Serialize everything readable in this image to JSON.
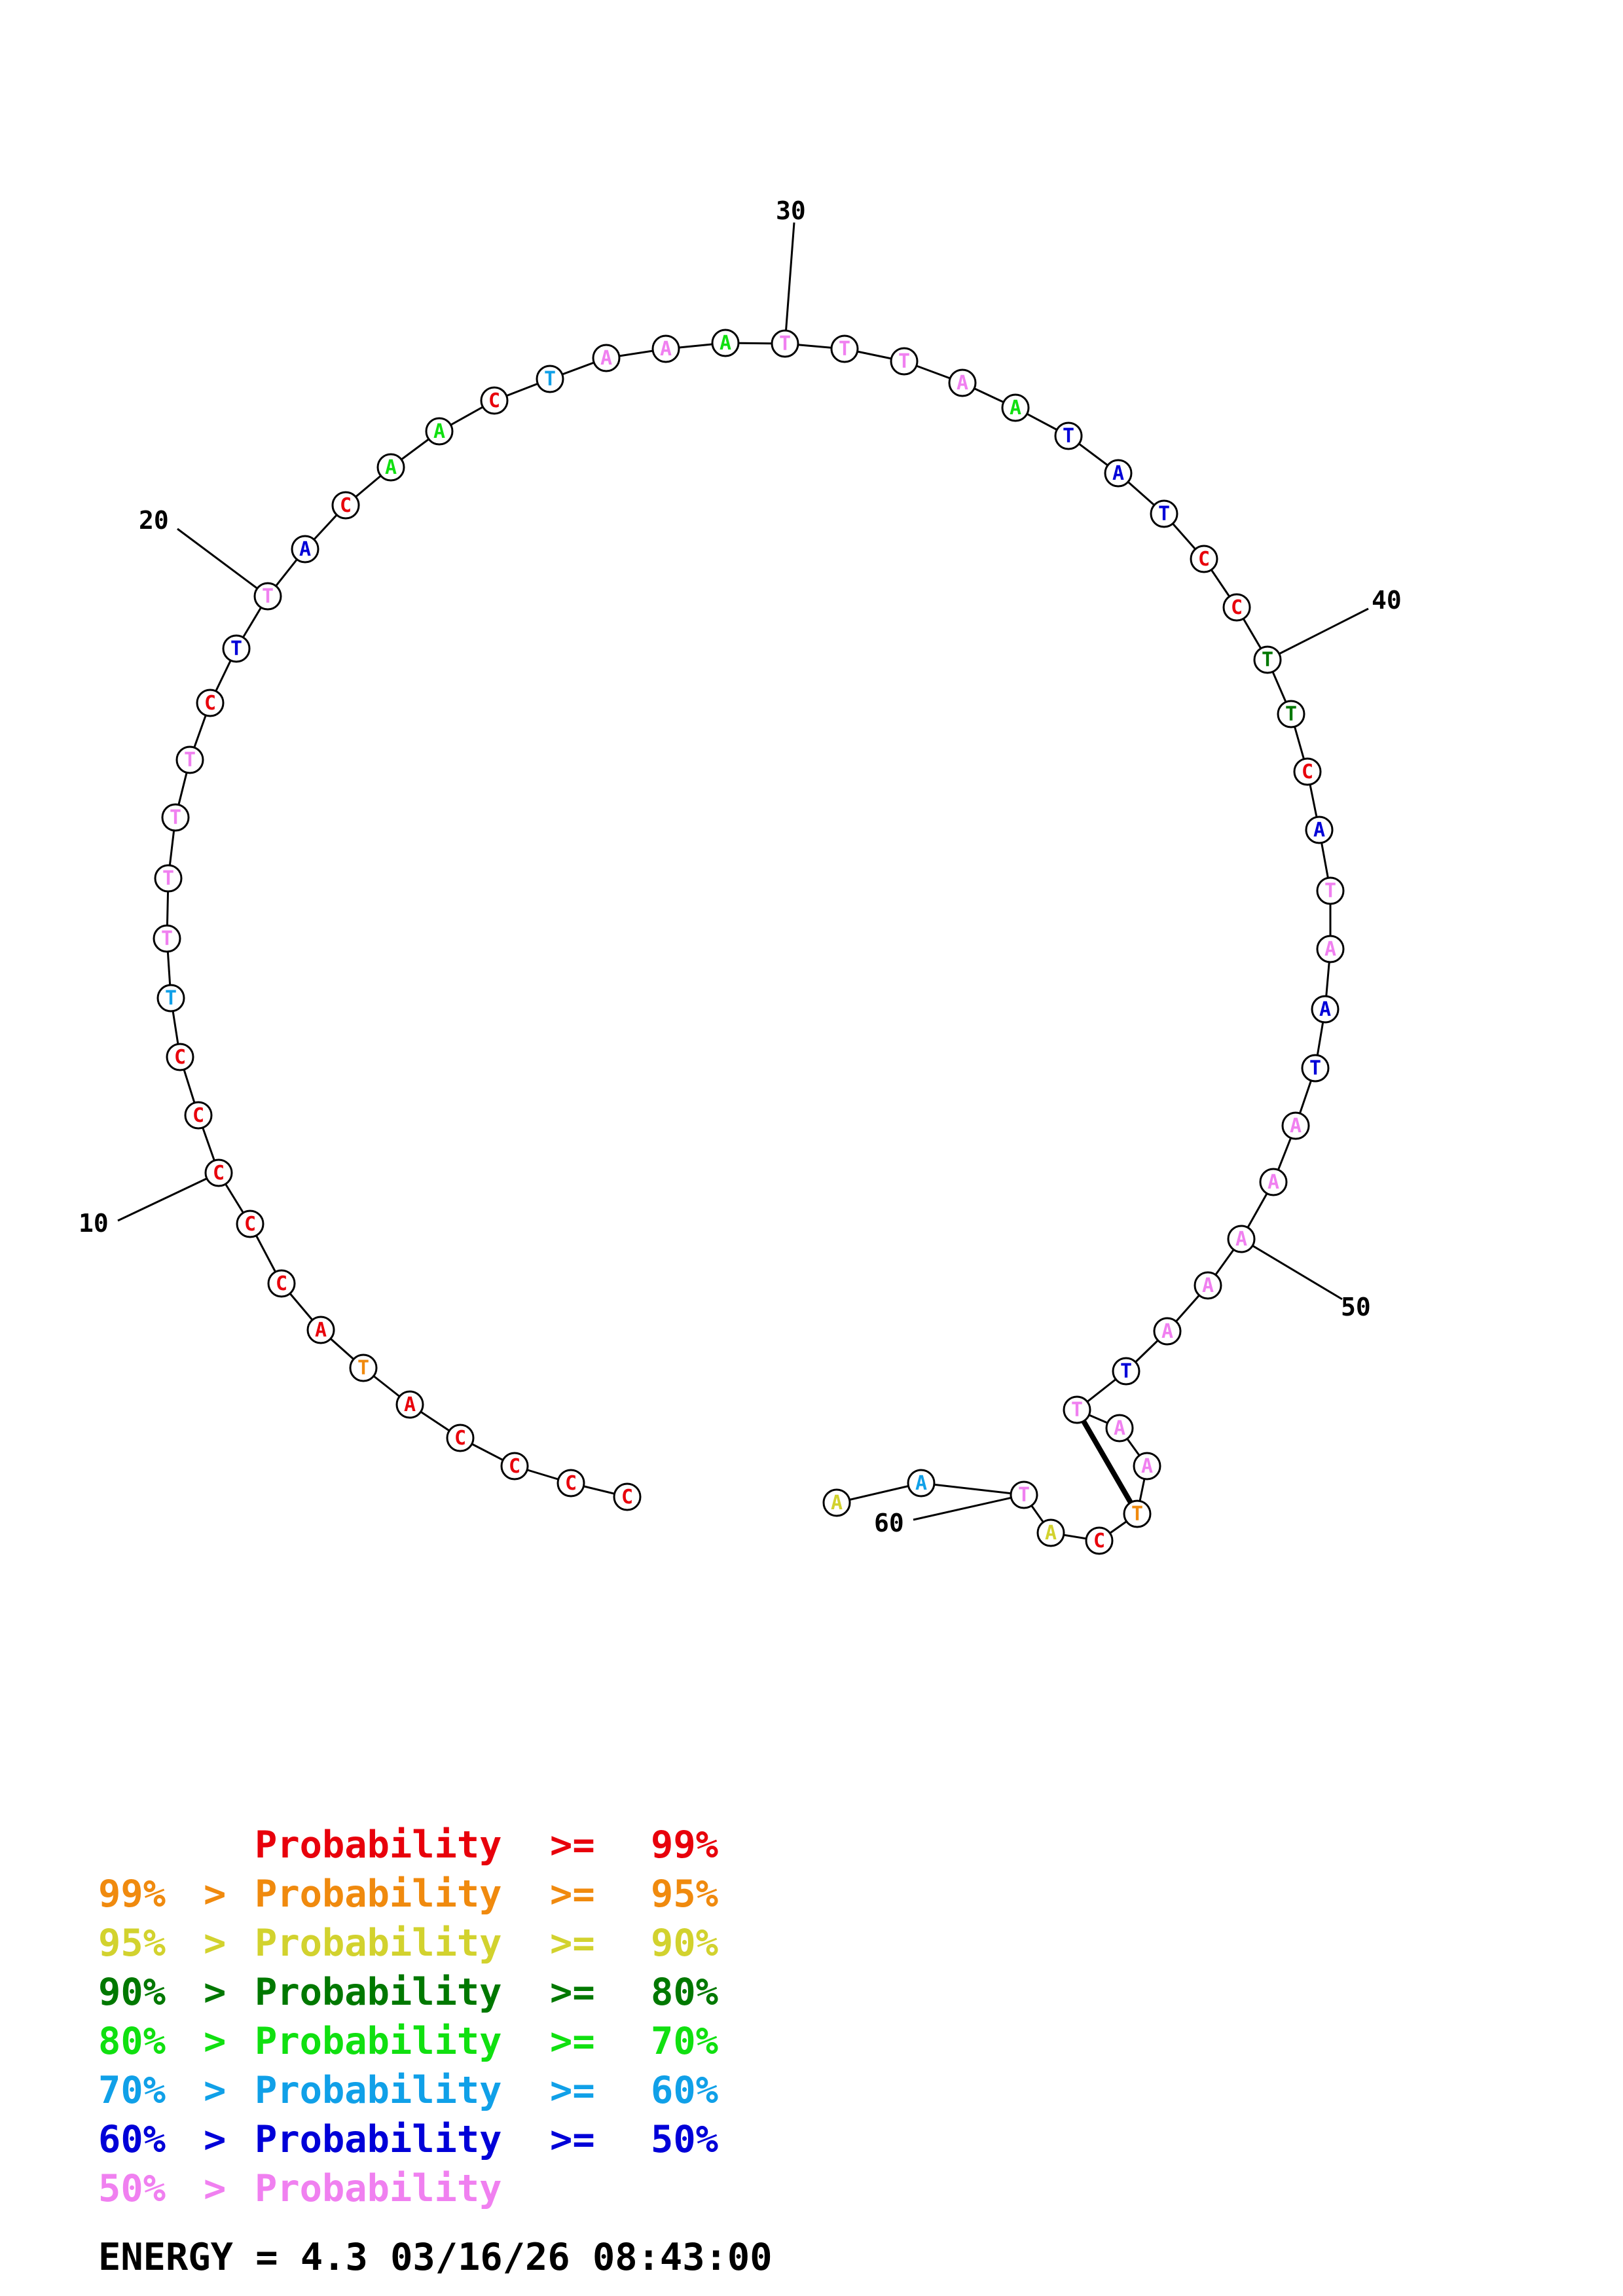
{
  "structure": {
    "sequence": [
      "C",
      "C",
      "C",
      "C",
      "A",
      "T",
      "A",
      "C",
      "C",
      "C",
      "C",
      "C",
      "T",
      "T",
      "T",
      "T",
      "T",
      "C",
      "T",
      "T",
      "A",
      "C",
      "A",
      "A",
      "C",
      "T",
      "A",
      "A",
      "A",
      "T",
      "T",
      "T",
      "A",
      "A",
      "T",
      "A",
      "T",
      "C",
      "C",
      "T",
      "T",
      "C",
      "A",
      "T",
      "A",
      "A",
      "T",
      "A",
      "A",
      "A",
      "A",
      "A",
      "T",
      "T",
      "A",
      "A",
      "T",
      "C",
      "A",
      "T",
      "A",
      "A"
    ],
    "prob_class": [
      0,
      0,
      0,
      0,
      0,
      1,
      0,
      0,
      0,
      0,
      0,
      0,
      5,
      7,
      7,
      7,
      7,
      0,
      6,
      7,
      6,
      0,
      4,
      4,
      0,
      5,
      7,
      7,
      4,
      7,
      7,
      7,
      7,
      4,
      6,
      6,
      6,
      0,
      0,
      3,
      3,
      0,
      6,
      7,
      7,
      6,
      6,
      7,
      7,
      7,
      7,
      7,
      6,
      7,
      7,
      7,
      1,
      0,
      2,
      7,
      5,
      2
    ],
    "base_pairs": [
      [
        53,
        56
      ]
    ],
    "tick_labels": [
      "10",
      "20",
      "30",
      "40",
      "50",
      "60"
    ]
  },
  "colors": {
    "classes": [
      "#e8000b",
      "#f08a0e",
      "#d2d22e",
      "#007800",
      "#10e010",
      "#10a0e8",
      "#0000d8",
      "#f080f0"
    ],
    "backbone": "#000000",
    "circle_fill": "#ffffff"
  },
  "legend": [
    {
      "left": "",
      "op": "",
      "label": "Probability",
      "rel": ">=",
      "right": "99%",
      "class": 0
    },
    {
      "left": "99%",
      "op": ">",
      "label": "Probability",
      "rel": ">=",
      "right": "95%",
      "class": 1
    },
    {
      "left": "95%",
      "op": ">",
      "label": "Probability",
      "rel": ">=",
      "right": "90%",
      "class": 2
    },
    {
      "left": "90%",
      "op": ">",
      "label": "Probability",
      "rel": ">=",
      "right": "80%",
      "class": 3
    },
    {
      "left": "80%",
      "op": ">",
      "label": "Probability",
      "rel": ">=",
      "right": "70%",
      "class": 4
    },
    {
      "left": "70%",
      "op": ">",
      "label": "Probability",
      "rel": ">=",
      "right": "60%",
      "class": 5
    },
    {
      "left": "60%",
      "op": ">",
      "label": "Probability",
      "rel": ">=",
      "right": "50%",
      "class": 6
    },
    {
      "left": "50%",
      "op": ">",
      "label": "Probability",
      "rel": "",
      "right": "",
      "class": 7
    }
  ],
  "energy": {
    "text": "ENERGY = 4.3  03/16/26 08:43:00"
  }
}
